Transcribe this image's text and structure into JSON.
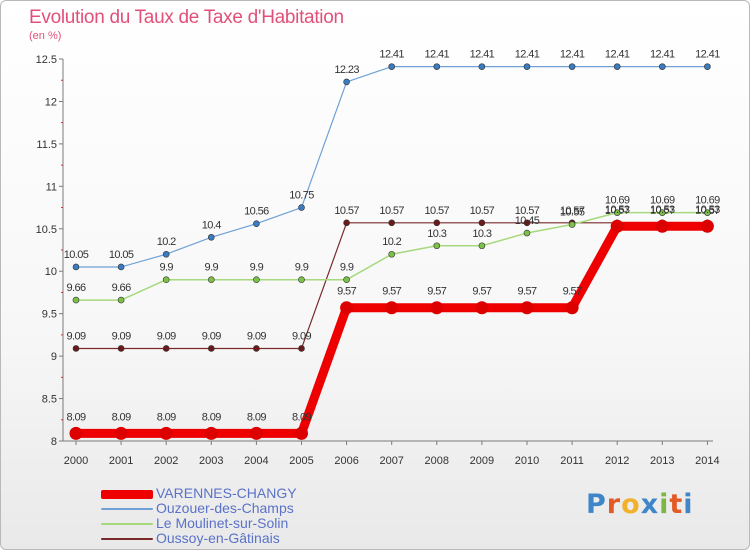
{
  "header": {
    "title": "Evolution du Taux de Taxe d'Habitation",
    "subtitle": "(en %)"
  },
  "logo": {
    "text": "Proxiti",
    "colors": [
      "#3f86c8",
      "#e25a26",
      "#f2b12b",
      "#3f86c8",
      "#7cb643",
      "#e25a26",
      "#3f86c8"
    ]
  },
  "chart_data": {
    "type": "line",
    "title": "Evolution du Taux de Taxe d'Habitation",
    "ylabel": "(en %)",
    "xlabel": "",
    "ylim": [
      8,
      12.5
    ],
    "yticks": [
      8,
      8.5,
      9,
      9.5,
      10,
      10.5,
      11,
      11.5,
      12,
      12.5
    ],
    "ytick_labels": [
      "8",
      "8.5",
      "9",
      "9.5",
      "10",
      "10.5",
      "11",
      "11.5",
      "12",
      "12.5"
    ],
    "grid": false,
    "legend_position": "bottom-left",
    "categories": [
      "2000",
      "2001",
      "2002",
      "2003",
      "2004",
      "2005",
      "2006",
      "2007",
      "2008",
      "2009",
      "2010",
      "2011",
      "2012",
      "2013",
      "2014"
    ],
    "series": [
      {
        "name": "Ouzouer-des-Champs",
        "color": "#6fa1d6",
        "marker": "#3a7cc0",
        "width": 1.2,
        "values": [
          10.05,
          10.05,
          10.2,
          10.4,
          10.56,
          10.75,
          12.23,
          12.41,
          12.41,
          12.41,
          12.41,
          12.41,
          12.41,
          12.41,
          12.41
        ]
      },
      {
        "name": "Oussoy-en-Gâtinais",
        "color": "#7a2a2a",
        "marker": "#6a1a1a",
        "width": 1.2,
        "values": [
          9.09,
          9.09,
          9.09,
          9.09,
          9.09,
          9.09,
          10.57,
          10.57,
          10.57,
          10.57,
          10.57,
          10.57,
          10.57,
          10.57,
          10.57
        ]
      },
      {
        "name": "Le Moulinet-sur-Solin",
        "color": "#a6d97d",
        "marker": "#7cc147",
        "width": 1.5,
        "values": [
          9.66,
          9.66,
          9.9,
          9.9,
          9.9,
          9.9,
          9.9,
          10.2,
          10.3,
          10.3,
          10.45,
          10.55,
          10.69,
          10.69,
          10.69
        ]
      },
      {
        "name": "VARENNES-CHANGY",
        "color": "#ee0000",
        "marker": "#dd0000",
        "width": 9,
        "values": [
          8.09,
          8.09,
          8.09,
          8.09,
          8.09,
          8.09,
          9.57,
          9.57,
          9.57,
          9.57,
          9.57,
          9.57,
          10.53,
          10.53,
          10.53
        ]
      }
    ],
    "legend": [
      {
        "name": "VARENNES-CHANGY",
        "color": "#ee0000",
        "width": 9
      },
      {
        "name": "Ouzouer-des-Champs",
        "color": "#6fa1d6",
        "width": 2
      },
      {
        "name": "Le Moulinet-sur-Solin",
        "color": "#a6d97d",
        "width": 2
      },
      {
        "name": "Oussoy-en-Gâtinais",
        "color": "#7a2a2a",
        "width": 2
      }
    ]
  }
}
